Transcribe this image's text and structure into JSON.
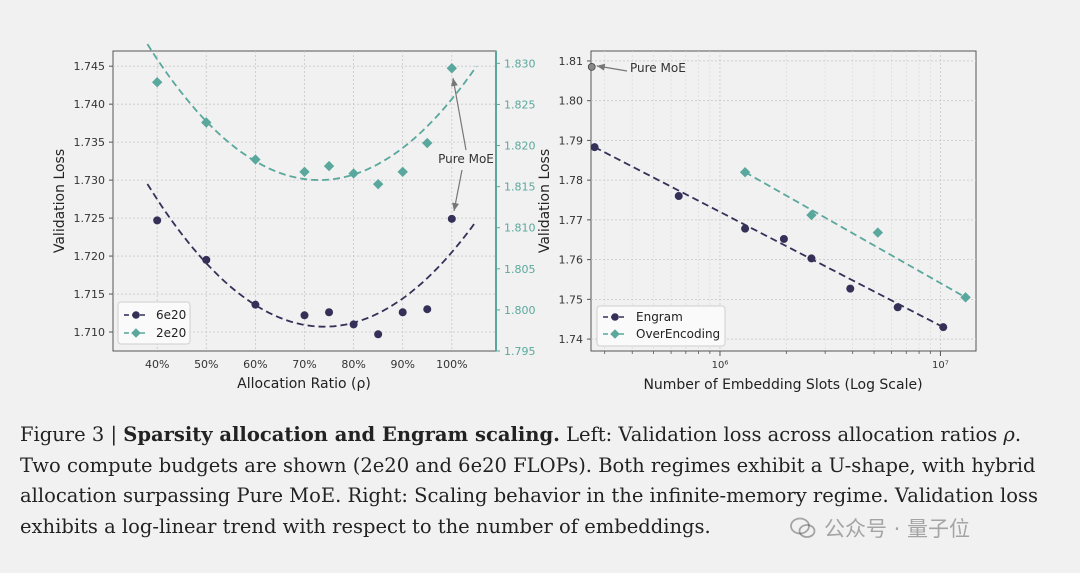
{
  "chart_data": [
    {
      "type": "scatter",
      "title": "",
      "xlabel": "Allocation Ratio (ρ)",
      "ylabel_left": "Validation Loss",
      "ylabel_right": "Validation Loss",
      "x_ticks": [
        "40%",
        "50%",
        "60%",
        "70%",
        "80%",
        "90%",
        "100%"
      ],
      "x_tick_values": [
        40,
        50,
        60,
        70,
        80,
        90,
        100
      ],
      "xlim": [
        31,
        109
      ],
      "ylim_left": [
        1.7075,
        1.747
      ],
      "y_ticks_left": [
        "1.710",
        "1.715",
        "1.720",
        "1.725",
        "1.730",
        "1.735",
        "1.740",
        "1.745"
      ],
      "y_tick_values_left": [
        1.71,
        1.715,
        1.72,
        1.725,
        1.73,
        1.735,
        1.74,
        1.745
      ],
      "ylim_right": [
        1.795,
        1.8315
      ],
      "y_ticks_right": [
        "1.795",
        "1.800",
        "1.805",
        "1.810",
        "1.815",
        "1.820",
        "1.825",
        "1.830"
      ],
      "y_tick_values_right": [
        1.795,
        1.8,
        1.805,
        1.81,
        1.815,
        1.82,
        1.825,
        1.83
      ],
      "legend": [
        "6e20",
        "2e20"
      ],
      "legend_position": "lower-left",
      "annotation": "Pure MoE",
      "series": [
        {
          "name": "6e20",
          "axis": "left",
          "marker": "circle",
          "color": "#353058",
          "x": [
            40,
            50,
            60,
            70,
            75,
            80,
            85,
            90,
            95,
            100
          ],
          "y": [
            1.7247,
            1.7195,
            1.7136,
            1.7122,
            1.7126,
            1.711,
            1.7097,
            1.7126,
            1.713,
            1.7249
          ],
          "fit": {
            "xmin": 38,
            "xmax": 105,
            "vertex_x": 74,
            "vertex_y": 1.7107,
            "a": 1.45e-05
          }
        },
        {
          "name": "2e20",
          "axis": "right",
          "marker": "diamond",
          "color": "#5aa89d",
          "x": [
            40,
            50,
            60,
            70,
            75,
            80,
            85,
            90,
            95,
            100
          ],
          "y": [
            1.8277,
            1.8228,
            1.8183,
            1.8168,
            1.8175,
            1.8166,
            1.8153,
            1.8168,
            1.8203,
            1.8294
          ],
          "fit": {
            "xmin": 38,
            "xmax": 105,
            "vertex_x": 73,
            "vertex_y": 1.8158,
            "a": 1.35e-05
          }
        }
      ]
    },
    {
      "type": "scatter",
      "title": "",
      "xlabel": "Number of Embedding Slots (Log Scale)",
      "ylabel": "Validation Loss",
      "x_scale": "log",
      "xlim": [
        260000,
        14500000
      ],
      "x_ticks": [
        "10⁶",
        "10⁷"
      ],
      "x_tick_values": [
        1000000,
        10000000
      ],
      "ylim": [
        1.737,
        1.8125
      ],
      "y_ticks": [
        "1.74",
        "1.75",
        "1.76",
        "1.77",
        "1.78",
        "1.79",
        "1.80",
        "1.81"
      ],
      "y_tick_values": [
        1.74,
        1.75,
        1.76,
        1.77,
        1.78,
        1.79,
        1.8,
        1.81
      ],
      "legend": [
        "Engram",
        "OverEncoding"
      ],
      "legend_position": "lower-left",
      "annotation": "Pure MoE",
      "pure_moe_point": {
        "x": 262000,
        "y": 1.8085
      },
      "series": [
        {
          "name": "Engram",
          "marker": "circle",
          "color": "#353058",
          "x": [
            270000,
            650000,
            1300000,
            1950000,
            2600000,
            3900000,
            6400000,
            10300000
          ],
          "y": [
            1.7883,
            1.776,
            1.7678,
            1.7652,
            1.7603,
            1.7527,
            1.748,
            1.743
          ],
          "fit": {
            "x0": 270000,
            "y0": 1.7883,
            "x1": 10300000,
            "y1": 1.743
          }
        },
        {
          "name": "OverEncoding",
          "marker": "diamond",
          "color": "#5aa89d",
          "x": [
            1300000,
            2600000,
            5200000,
            13000000
          ],
          "y": [
            1.782,
            1.7712,
            1.7668,
            1.7505
          ],
          "fit": {
            "x0": 1300000,
            "y0": 1.782,
            "x1": 13000000,
            "y1": 1.7505
          }
        }
      ]
    }
  ],
  "caption": {
    "label": "Figure 3 | ",
    "title": "Sparsity allocation and Engram scaling.",
    "part1": " Left: Validation loss across allocation ratios ",
    "rho": "ρ",
    "part2": ". Two compute budgets are shown (2e20 and 6e20 FLOPs). Both regimes exhibit a U-shape, with hybrid allocation surpassing Pure MoE. Right: Scaling behavior in the infinite-memory regime. Validation loss exhibits a log-linear trend with respect to the number of embeddings."
  },
  "watermark": "公众号 · 量子位",
  "colors": {
    "dark": "#353058",
    "teal": "#5aa89d",
    "grid": "#c8c8c8",
    "axis": "#555555"
  }
}
